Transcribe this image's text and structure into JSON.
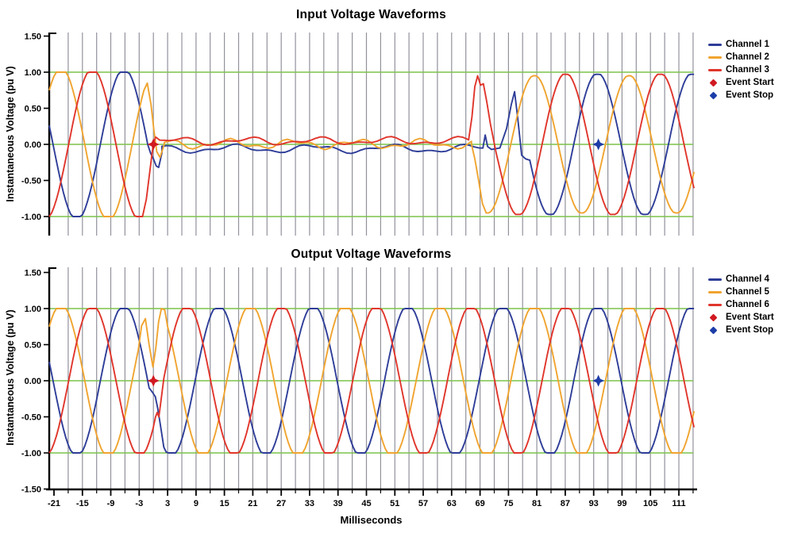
{
  "page": {
    "background": "#ffffff"
  },
  "x_axis": {
    "label": "Milliseconds",
    "major_tick_labels": [
      "-21",
      "-15",
      "-9",
      "-3",
      "3",
      "9",
      "15",
      "21",
      "27",
      "33",
      "39",
      "45",
      "51",
      "57",
      "63",
      "69",
      "75",
      "81",
      "87",
      "93",
      "99",
      "105",
      "111"
    ],
    "minor_step": 3,
    "major_step": 6,
    "range": [
      -22,
      114.2
    ]
  },
  "chart_data": [
    {
      "type": "line",
      "title": "Input Voltage Waveforms",
      "ylabel": "Instantaneous Voltage (pu V)",
      "xlabel": "Milliseconds",
      "x_range": [
        -22,
        114.2
      ],
      "ylim": [
        -1.28,
        1.55
      ],
      "y_tick_labels": [
        "1.50",
        "1.00",
        "0.50",
        "0.00",
        "-0.50",
        "-1.00"
      ],
      "grid": {
        "vertical_color": "#92929c",
        "horizontal_color": "#7cc34a",
        "horizontal_values": [
          1.0,
          0.0,
          -1.0
        ],
        "vertical_start": -18,
        "vertical_end": 114,
        "vertical_step": 3
      },
      "waveform_note": "Three-phase input, 20 ms period; voltage sag to ~0 pu between event start (t=0) and recovery (t~67 ms)",
      "series": [
        {
          "name": "Channel 1",
          "color": "#2e3d98",
          "period": 20,
          "segments": [
            {
              "type": "sine",
              "from": -22,
              "to": -1.2,
              "amplitude": 1.05,
              "peak": -6.2,
              "clip": 1.0
            },
            {
              "type": "points",
              "pts": [
                [
                  -1.2,
                  0.0
                ],
                [
                  -0.6,
                  -0.12
                ],
                [
                  0,
                  -0.2
                ],
                [
                  0.6,
                  -0.3
                ],
                [
                  1.1,
                  -0.32
                ],
                [
                  1.8,
                  -0.12
                ]
              ]
            },
            {
              "type": "ripple",
              "from": 1.8,
              "to": 69.6,
              "base": -0.06,
              "components": [
                [
                  0.045,
                  16.5,
                  1.3
                ],
                [
                  0.022,
                  6.8,
                  4.2
                ]
              ]
            },
            {
              "type": "points",
              "pts": [
                [
                  69.6,
                  -0.05
                ],
                [
                  70.1,
                  0.13
                ],
                [
                  70.6,
                  -0.03
                ],
                [
                  71.4,
                  -0.07
                ],
                [
                  73.2,
                  -0.05
                ],
                [
                  74.6,
                  0.22
                ],
                [
                  75.6,
                  0.55
                ],
                [
                  76.3,
                  0.73
                ],
                [
                  77.0,
                  0.34
                ],
                [
                  77.8,
                  -0.15
                ],
                [
                  78.6,
                  -0.2
                ],
                [
                  79.5,
                  -0.22
                ]
              ]
            },
            {
              "type": "sine",
              "from": 79.5,
              "to": 114.2,
              "amplitude": 0.99,
              "peak": 93.8,
              "clip": 0.97
            }
          ]
        },
        {
          "name": "Channel 2",
          "color": "#f0a42f",
          "period": 20,
          "segments": [
            {
              "type": "sine",
              "from": -22,
              "to": -2.0,
              "amplitude": 1.06,
              "peak": 0.5,
              "clip": 1.0
            },
            {
              "type": "points",
              "pts": [
                [
                  -2.0,
                  0.75
                ],
                [
                  -1.3,
                  0.85
                ],
                [
                  -0.5,
                  0.55
                ],
                [
                  0.1,
                  0.2
                ],
                [
                  0.7,
                  -0.1
                ],
                [
                  1.4,
                  -0.18
                ],
                [
                  2.3,
                  0.0
                ]
              ]
            },
            {
              "type": "ripple",
              "from": 2.3,
              "to": 67.2,
              "base": 0.005,
              "components": [
                [
                  0.05,
                  13.5,
                  0.4
                ],
                [
                  0.028,
                  5.7,
                  2.4
                ]
              ]
            },
            {
              "type": "points",
              "pts": [
                [
                  67.2,
                  0.0
                ],
                [
                  67.9,
                  -0.2
                ],
                [
                  68.7,
                  -0.5
                ],
                [
                  69.5,
                  -0.82
                ],
                [
                  70.3,
                  -0.95
                ]
              ]
            },
            {
              "type": "sine",
              "from": 70.3,
              "to": 114.2,
              "amplitude": 0.96,
              "peak": 80.5,
              "clip": 0.95
            }
          ]
        },
        {
          "name": "Channel 3",
          "color": "#e0352b",
          "period": 20,
          "segments": [
            {
              "type": "sine",
              "from": -22,
              "to": -2.3,
              "amplitude": 1.05,
              "peak": -12.9,
              "clip": 1.0
            },
            {
              "type": "points",
              "pts": [
                [
                  -2.3,
                  -1.0
                ],
                [
                  -1.5,
                  -0.76
                ],
                [
                  -0.8,
                  -0.4
                ],
                [
                  0,
                  0.02
                ],
                [
                  0.5,
                  0.1
                ],
                [
                  1.3,
                  0.06
                ]
              ]
            },
            {
              "type": "ripple",
              "from": 1.3,
              "to": 66.6,
              "base": 0.045,
              "components": [
                [
                  0.04,
                  14.8,
                  5.6
                ],
                [
                  0.024,
                  7.1,
                  1.1
                ]
              ]
            },
            {
              "type": "points",
              "pts": [
                [
                  66.6,
                  0.07
                ],
                [
                  67.3,
                  0.38
                ],
                [
                  67.9,
                  0.8
                ],
                [
                  68.5,
                  0.95
                ],
                [
                  69.1,
                  0.82
                ],
                [
                  69.7,
                  0.84
                ],
                [
                  70.4,
                  0.6
                ],
                [
                  71.2,
                  0.28
                ],
                [
                  72.4,
                  -0.12
                ],
                [
                  74.0,
                  -0.56
                ]
              ]
            },
            {
              "type": "sine",
              "from": 74.0,
              "to": 114.2,
              "amplitude": 0.99,
              "peak": 87.1,
              "clip": 0.97
            }
          ]
        }
      ],
      "events": [
        {
          "label": "Event Start",
          "t": 0,
          "value": 0,
          "color": "#d11920"
        },
        {
          "label": "Event Stop",
          "t": 94,
          "value": 0,
          "color": "#1d3da8"
        }
      ],
      "legend": [
        {
          "label": "Channel 1",
          "color": "#2e3d98",
          "swatch": "line"
        },
        {
          "label": "Channel 2",
          "color": "#f0a42f",
          "swatch": "line"
        },
        {
          "label": "Channel 3",
          "color": "#e0352b",
          "swatch": "line"
        },
        {
          "label": "Event Start",
          "color": "#d11920",
          "swatch": "diamond"
        },
        {
          "label": "Event Stop",
          "color": "#1d3da8",
          "swatch": "diamond"
        }
      ]
    },
    {
      "type": "line",
      "title": "Output Voltage Waveforms",
      "ylabel": "Instantaneous Voltage (pu V)",
      "xlabel": "Milliseconds",
      "x_range": [
        -22,
        114.2
      ],
      "ylim": [
        -1.5,
        1.57
      ],
      "y_tick_labels": [
        "1.50",
        "1.00",
        "0.50",
        "0.00",
        "-0.50",
        "-1.00",
        "-1.50"
      ],
      "grid": {
        "vertical_color": "#92929c",
        "horizontal_color": "#7cc34a",
        "horizontal_values": [
          1.0,
          0.0,
          -1.0
        ],
        "vertical_start": -18,
        "vertical_end": 114,
        "vertical_step": 3
      },
      "waveform_note": "Three-phase output held at 1.0 pu throughout the sag; small glitch near t=0",
      "series": [
        {
          "name": "Channel 4",
          "color": "#2e3d98",
          "period": 20,
          "segments": [
            {
              "type": "sine",
              "from": -22,
              "to": -0.9,
              "amplitude": 1.05,
              "peak": -6.2,
              "clip": 1.0
            },
            {
              "type": "points",
              "pts": [
                [
                  -0.9,
                  -0.1
                ],
                [
                  -0.2,
                  -0.16
                ],
                [
                  0.4,
                  -0.22
                ],
                [
                  0.9,
                  -0.38
                ],
                [
                  1.5,
                  -0.62
                ],
                [
                  2.2,
                  -0.92
                ]
              ]
            },
            {
              "type": "sine",
              "from": 2.2,
              "to": 114.2,
              "amplitude": 1.05,
              "peak": -6.2,
              "clip": 1.0
            }
          ]
        },
        {
          "name": "Channel 5",
          "color": "#f0a42f",
          "period": 20,
          "segments": [
            {
              "type": "sine",
              "from": -22,
              "to": -3.2,
              "amplitude": 1.06,
              "peak": 0.5,
              "clip": 1.0
            },
            {
              "type": "points",
              "pts": [
                [
                  -3.2,
                  0.42
                ],
                [
                  -2.5,
                  0.76
                ],
                [
                  -1.7,
                  0.86
                ],
                [
                  -0.9,
                  0.5
                ],
                [
                  -0.1,
                  0.19
                ],
                [
                  0.5,
                  0.45
                ],
                [
                  1.1,
                  0.82
                ],
                [
                  1.7,
                  1.0
                ],
                [
                  2.4,
                  0.98
                ],
                [
                  3.0,
                  0.75
                ]
              ]
            },
            {
              "type": "sine",
              "from": 3.0,
              "to": 114.2,
              "amplitude": 1.06,
              "peak": 0.5,
              "clip": 1.0
            }
          ]
        },
        {
          "name": "Channel 6",
          "color": "#e0352b",
          "period": 20,
          "segments": [
            {
              "type": "sine",
              "from": -22,
              "to": 0,
              "amplitude": 1.05,
              "peak": -12.9,
              "clip": 1.0
            },
            {
              "type": "points",
              "pts": [
                [
                  0,
                  -0.64
                ],
                [
                  0.45,
                  -0.5
                ],
                [
                  0.8,
                  -0.44
                ],
                [
                  1.15,
                  -0.5
                ],
                [
                  1.6,
                  -0.28
                ],
                [
                  2.2,
                  0.03
                ]
              ]
            },
            {
              "type": "sine",
              "from": 2.2,
              "to": 114.2,
              "amplitude": 1.05,
              "peak": -12.9,
              "clip": 1.0
            }
          ]
        }
      ],
      "events": [
        {
          "label": "Event Start",
          "t": 0,
          "value": 0,
          "color": "#d11920"
        },
        {
          "label": "Event Stop",
          "t": 94,
          "value": 0,
          "color": "#1d3da8"
        }
      ],
      "legend": [
        {
          "label": "Channel 4",
          "color": "#2e3d98",
          "swatch": "line"
        },
        {
          "label": "Channel 5",
          "color": "#f0a42f",
          "swatch": "line"
        },
        {
          "label": "Channel 6",
          "color": "#e0352b",
          "swatch": "line"
        },
        {
          "label": "Event Start",
          "color": "#d11920",
          "swatch": "diamond"
        },
        {
          "label": "Event Stop",
          "color": "#1d3da8",
          "swatch": "diamond"
        }
      ]
    }
  ]
}
